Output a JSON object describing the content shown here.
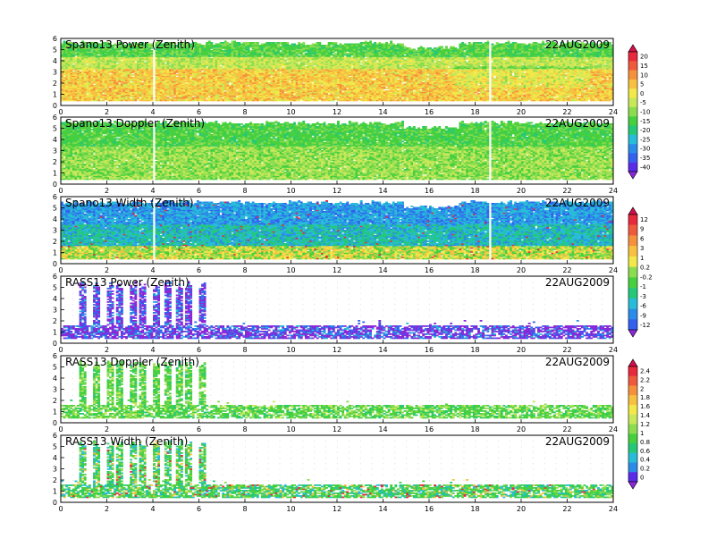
{
  "chart_data": [
    {
      "type": "heatmap",
      "title": "Spano13 Power (Zenith)",
      "date": "22AUG2009",
      "xlim": [
        0,
        24
      ],
      "ylim": [
        0,
        6
      ],
      "xticks": [
        "0",
        "2",
        "4",
        "6",
        "8",
        "10",
        "12",
        "14",
        "16",
        "18",
        "20",
        "22",
        "24"
      ],
      "yticks": [
        "0",
        "1",
        "2",
        "3",
        "4",
        "5",
        "6"
      ],
      "colorbar": "A",
      "profile": "power",
      "data_gaps_hours": [
        4.0,
        18.6
      ],
      "top_height_km": 5.7
    },
    {
      "type": "heatmap",
      "title": "Spano13 Doppler (Zenith)",
      "date": "22AUG2009",
      "xlim": [
        0,
        24
      ],
      "ylim": [
        0,
        6
      ],
      "xticks": [
        "0",
        "2",
        "4",
        "6",
        "8",
        "10",
        "12",
        "14",
        "16",
        "18",
        "20",
        "22",
        "24"
      ],
      "yticks": [
        "0",
        "1",
        "2",
        "3",
        "4",
        "5",
        "6"
      ],
      "colorbar": "A",
      "profile": "doppler",
      "data_gaps_hours": [
        4.0,
        18.6
      ],
      "top_height_km": 5.6
    },
    {
      "type": "heatmap",
      "title": "Spano13 Width (Zenith)",
      "date": "22AUG2009",
      "xlim": [
        0,
        24
      ],
      "ylim": [
        0,
        6
      ],
      "xticks": [
        "0",
        "2",
        "4",
        "6",
        "8",
        "10",
        "12",
        "14",
        "16",
        "18",
        "20",
        "22",
        "24"
      ],
      "yticks": [
        "0",
        "1",
        "2",
        "3",
        "4",
        "5",
        "6"
      ],
      "colorbar": "A",
      "profile": "width",
      "data_gaps_hours": [
        4.0,
        18.6
      ],
      "top_height_km": 5.6
    },
    {
      "type": "heatmap",
      "title": "RASS13 Power (Zenith)",
      "date": "22AUG2009",
      "xlim": [
        0,
        24
      ],
      "ylim": [
        0,
        6
      ],
      "xticks": [
        "0",
        "2",
        "4",
        "6",
        "8",
        "10",
        "12",
        "14",
        "16",
        "18",
        "20",
        "22",
        "24"
      ],
      "yticks": [
        "0",
        "1",
        "2",
        "3",
        "4",
        "5",
        "6"
      ],
      "colorbar": "B",
      "profile": "rass_power",
      "spike_hours": [
        0.9,
        1.5,
        2.1,
        2.5,
        3.1,
        3.5,
        4.1,
        4.6,
        5.1,
        5.5,
        6.1
      ],
      "spike_top_km": 5.5
    },
    {
      "type": "heatmap",
      "title": "RASS13 Doppler (Zenith)",
      "date": "22AUG2009",
      "xlim": [
        0,
        24
      ],
      "ylim": [
        0,
        6
      ],
      "xticks": [
        "0",
        "2",
        "4",
        "6",
        "8",
        "10",
        "12",
        "14",
        "16",
        "18",
        "20",
        "22",
        "24"
      ],
      "yticks": [
        "0",
        "1",
        "2",
        "3",
        "4",
        "5",
        "6"
      ],
      "colorbar": "C",
      "profile": "rass_doppler",
      "spike_hours": [
        0.9,
        1.5,
        2.1,
        2.5,
        3.1,
        3.5,
        4.1,
        4.6,
        5.1,
        5.5,
        6.1
      ],
      "spike_top_km": 5.5
    },
    {
      "type": "heatmap",
      "title": "RASS13 Width (Zenith)",
      "date": "22AUG2009",
      "xlim": [
        0,
        24
      ],
      "ylim": [
        0,
        6
      ],
      "xticks": [
        "0",
        "2",
        "4",
        "6",
        "8",
        "10",
        "12",
        "14",
        "16",
        "18",
        "20",
        "22",
        "24"
      ],
      "yticks": [
        "0",
        "1",
        "2",
        "3",
        "4",
        "5",
        "6"
      ],
      "colorbar": "C",
      "profile": "rass_width",
      "spike_hours": [
        0.9,
        1.5,
        2.1,
        2.5,
        3.1,
        3.5,
        4.1,
        4.6,
        5.1,
        5.5,
        6.1
      ],
      "spike_top_km": 5.5
    }
  ],
  "colorbars": {
    "A": {
      "labels": [
        "20",
        "15",
        "10",
        "5",
        "0",
        "-5",
        "-10",
        "-15",
        "-20",
        "-25",
        "-30",
        "-35",
        "-40"
      ],
      "colors": [
        "#d0104a",
        "#e8283c",
        "#f05a3c",
        "#f5913c",
        "#f8c040",
        "#f2e84a",
        "#c8e85a",
        "#8cdc50",
        "#46d040",
        "#24c878",
        "#28bcd8",
        "#2a8ce8",
        "#3460f0",
        "#5a2ce8",
        "#8a28d8"
      ]
    },
    "B": {
      "labels": [
        "12",
        "9",
        "6",
        "3",
        "1",
        "0.2",
        "-0.2",
        "-1",
        "-3",
        "-6",
        "-9",
        "-12"
      ],
      "colors": [
        "#d0104a",
        "#e8283c",
        "#f05a3c",
        "#f5913c",
        "#f8c040",
        "#f2e84a",
        "#8cdc50",
        "#46d040",
        "#24c878",
        "#28bcd8",
        "#2a8ce8",
        "#3460f0",
        "#8a28d8"
      ]
    },
    "C": {
      "labels": [
        "2.4",
        "2.2",
        "2",
        "1.8",
        "1.6",
        "1.4",
        "1.2",
        "1",
        "0.8",
        "0.6",
        "0.4",
        "0.2",
        "0"
      ],
      "colors": [
        "#d0104a",
        "#e8283c",
        "#f05a3c",
        "#f5913c",
        "#f8c040",
        "#f2e84a",
        "#c8e85a",
        "#8cdc50",
        "#46d040",
        "#24c878",
        "#28bcd8",
        "#2a8ce8",
        "#5a2ce8",
        "#8a28d8"
      ]
    }
  }
}
